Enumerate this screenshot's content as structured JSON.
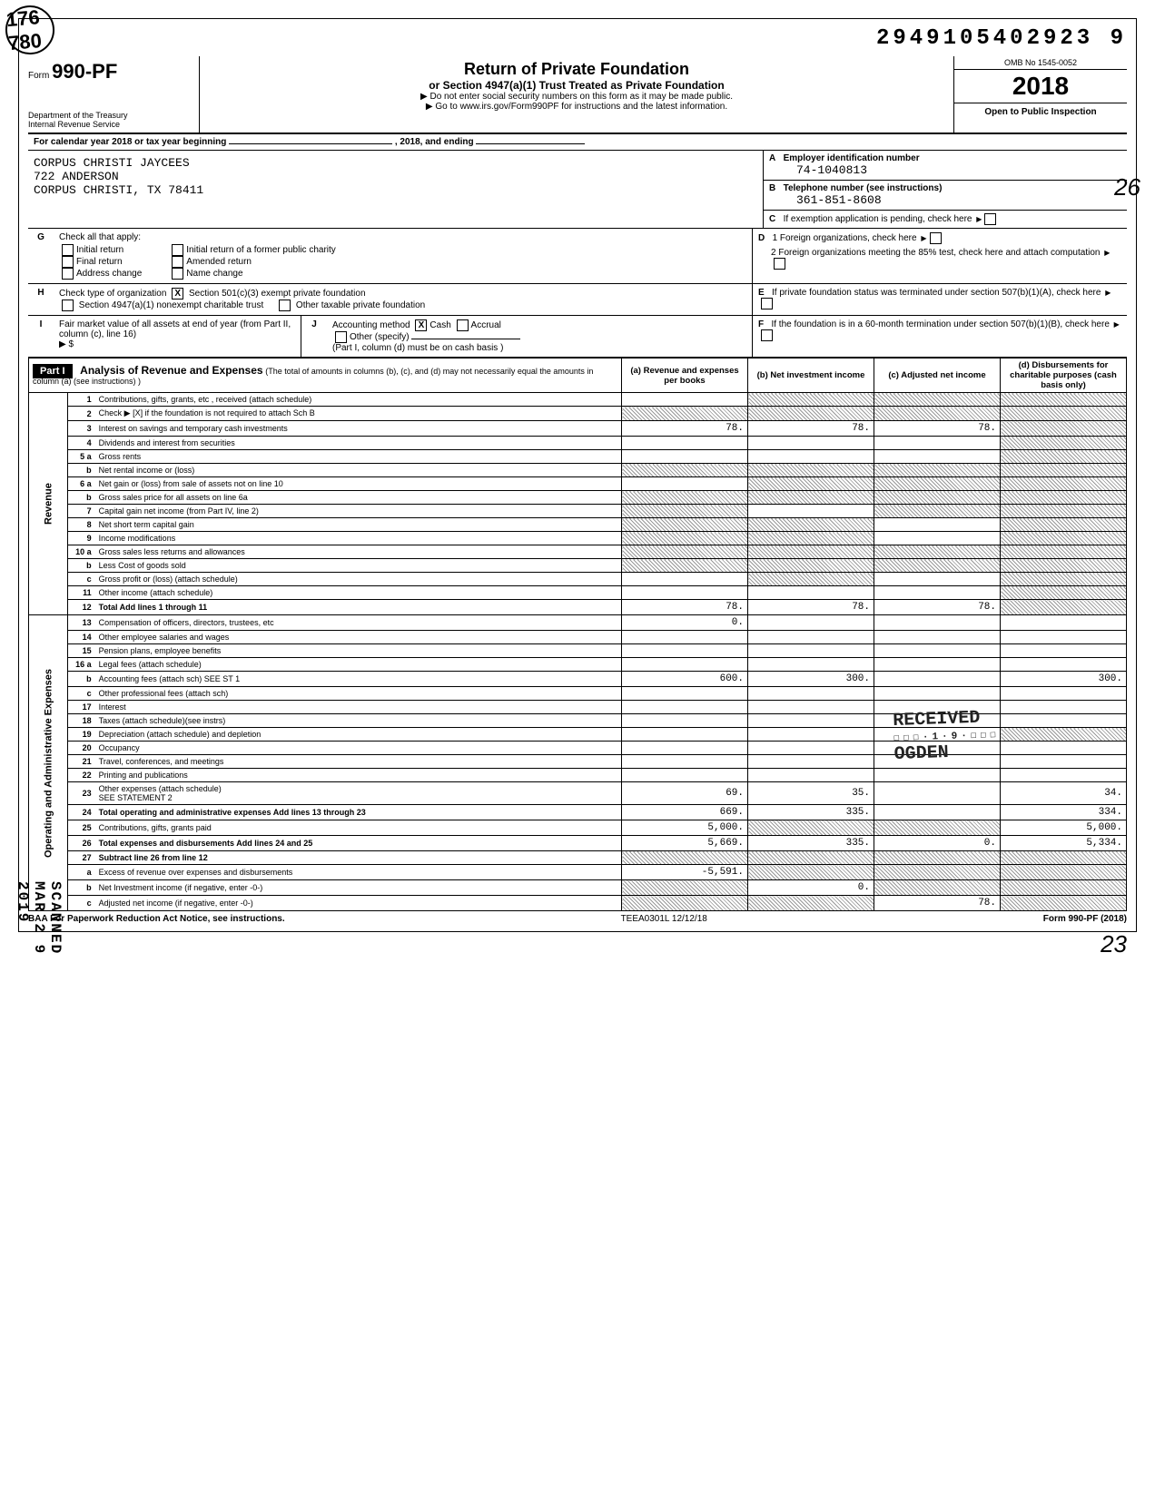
{
  "dln": "2949105402923  9",
  "omb": "OMB No 1545-0052",
  "form_number": "990-PF",
  "form_prefix": "Form",
  "year": "2018",
  "title": "Return of Private Foundation",
  "subtitle": "or Section 4947(a)(1) Trust Treated as Private Foundation",
  "note1": "▶ Do not enter social security numbers on this form as it may be made public.",
  "note2": "▶ Go to www.irs.gov/Form990PF for instructions and the latest information.",
  "dept": "Department of the Treasury\nInternal Revenue Service",
  "open": "Open to Public Inspection",
  "cal_year_line": "For calendar year 2018 or tax year beginning",
  "cal_mid": ", 2018, and ending",
  "name": "CORPUS CHRISTI JAYCEES",
  "addr1": "722 ANDERSON",
  "addr2": "CORPUS CHRISTI, TX 78411",
  "box_a_label": "Employer identification number",
  "box_a_lbl": "A",
  "ein": "74-1040813",
  "box_b_label": "Telephone number (see instructions)",
  "box_b_lbl": "B",
  "phone": "361-851-8608",
  "box_c": "If exemption application is pending, check here",
  "box_c_lbl": "C",
  "box_d1": "1  Foreign organizations, check here",
  "box_d_lbl": "D",
  "box_d2": "2  Foreign organizations meeting the 85% test, check here and attach computation",
  "box_e": "If private foundation status was terminated under section 507(b)(1)(A), check here",
  "box_e_lbl": "E",
  "box_f": "If the foundation is in a 60-month termination under section 507(b)(1)(B), check here",
  "box_f_lbl": "F",
  "g_label": "Check all that apply:",
  "g_options": [
    "Initial return",
    "Final return",
    "Address change",
    "Initial return of a former public charity",
    "Amended return",
    "Name change"
  ],
  "h_label": "Check type of organization",
  "h_options_x": "Section 501(c)(3) exempt private foundation",
  "h_option2": "Section 4947(a)(1) nonexempt charitable trust",
  "h_option3": "Other taxable private foundation",
  "i_label": "Fair market value of all assets at end of year (from Part II, column (c), line 16)",
  "i_prefix": "▶ $",
  "j_label": "Accounting method",
  "j_cash": "Cash",
  "j_accrual": "Accrual",
  "j_other": "Other (specify)",
  "j_note": "(Part I, column (d) must be on cash basis )",
  "part1_label": "Part I",
  "part1_title": "Analysis of Revenue and Expenses",
  "part1_note": "(The total of amounts in columns (b), (c), and (d) may not necessarily equal the amounts in column (a) (see instructions) )",
  "col_a": "(a) Revenue and expenses per books",
  "col_b": "(b) Net investment income",
  "col_c": "(c) Adjusted net income",
  "col_d": "(d) Disbursements for charitable purposes (cash basis only)",
  "side_revenue": "Revenue",
  "side_expenses": "Operating and Administrative Expenses",
  "scanned": "SCANNED MAR 2 9 2019",
  "received1": "RECEIVED",
  "received2": "OGDEN",
  "rows": [
    {
      "n": "1",
      "d": "Contributions, gifts, grants, etc , received (attach schedule)",
      "a": "",
      "b": "shade",
      "c": "shade",
      "dd": "shade"
    },
    {
      "n": "2",
      "d": "Check ▶  [X] if the foundation is not required to attach Sch  B",
      "a": "shade",
      "b": "shade",
      "c": "shade",
      "dd": "shade"
    },
    {
      "n": "3",
      "d": "Interest on savings and temporary cash investments",
      "a": "78.",
      "b": "78.",
      "c": "78.",
      "dd": "shade"
    },
    {
      "n": "4",
      "d": "Dividends and interest from securities",
      "a": "",
      "b": "",
      "c": "",
      "dd": "shade"
    },
    {
      "n": "5 a",
      "d": "Gross rents",
      "a": "",
      "b": "",
      "c": "",
      "dd": "shade"
    },
    {
      "n": "b",
      "d": "Net rental income or (loss)",
      "a": "shade",
      "b": "shade",
      "c": "shade",
      "dd": "shade"
    },
    {
      "n": "6 a",
      "d": "Net gain or (loss) from sale of assets not on line 10",
      "a": "",
      "b": "shade",
      "c": "shade",
      "dd": "shade"
    },
    {
      "n": "b",
      "d": "Gross sales price for all assets on line 6a",
      "a": "shade",
      "b": "shade",
      "c": "shade",
      "dd": "shade"
    },
    {
      "n": "7",
      "d": "Capital gain net income (from Part IV, line 2)",
      "a": "shade",
      "b": "",
      "c": "shade",
      "dd": "shade"
    },
    {
      "n": "8",
      "d": "Net short term capital gain",
      "a": "shade",
      "b": "shade",
      "c": "",
      "dd": "shade"
    },
    {
      "n": "9",
      "d": "Income modifications",
      "a": "shade",
      "b": "shade",
      "c": "",
      "dd": "shade"
    },
    {
      "n": "10 a",
      "d": "Gross sales less returns and allowances",
      "a": "shade",
      "b": "shade",
      "c": "shade",
      "dd": "shade"
    },
    {
      "n": "b",
      "d": "Less  Cost of goods sold",
      "a": "shade",
      "b": "shade",
      "c": "shade",
      "dd": "shade"
    },
    {
      "n": "c",
      "d": "Gross profit or (loss) (attach schedule)",
      "a": "",
      "b": "shade",
      "c": "",
      "dd": "shade"
    },
    {
      "n": "11",
      "d": "Other income (attach schedule)",
      "a": "",
      "b": "",
      "c": "",
      "dd": "shade"
    },
    {
      "n": "12",
      "d": "Total   Add lines 1 through 11",
      "a": "78.",
      "b": "78.",
      "c": "78.",
      "dd": "shade",
      "bold": true
    },
    {
      "n": "13",
      "d": "Compensation of officers, directors, trustees, etc",
      "a": "0.",
      "b": "",
      "c": "",
      "dd": ""
    },
    {
      "n": "14",
      "d": "Other employee salaries and wages",
      "a": "",
      "b": "",
      "c": "",
      "dd": ""
    },
    {
      "n": "15",
      "d": "Pension plans, employee benefits",
      "a": "",
      "b": "",
      "c": "",
      "dd": ""
    },
    {
      "n": "16 a",
      "d": "Legal fees (attach schedule)",
      "a": "",
      "b": "",
      "c": "",
      "dd": ""
    },
    {
      "n": "b",
      "d": "Accounting fees (attach sch)      SEE ST 1",
      "a": "600.",
      "b": "300.",
      "c": "",
      "dd": "300."
    },
    {
      "n": "c",
      "d": "Other professional fees (attach sch)",
      "a": "",
      "b": "",
      "c": "",
      "dd": ""
    },
    {
      "n": "17",
      "d": "Interest",
      "a": "",
      "b": "",
      "c": "",
      "dd": ""
    },
    {
      "n": "18",
      "d": "Taxes (attach schedule)(see instrs)",
      "a": "",
      "b": "",
      "c": "",
      "dd": ""
    },
    {
      "n": "19",
      "d": "Depreciation (attach schedule) and depletion",
      "a": "",
      "b": "",
      "c": "",
      "dd": "shade"
    },
    {
      "n": "20",
      "d": "Occupancy",
      "a": "",
      "b": "",
      "c": "",
      "dd": ""
    },
    {
      "n": "21",
      "d": "Travel, conferences, and meetings",
      "a": "",
      "b": "",
      "c": "",
      "dd": ""
    },
    {
      "n": "22",
      "d": "Printing and publications",
      "a": "",
      "b": "",
      "c": "",
      "dd": ""
    },
    {
      "n": "23",
      "d": "Other expenses (attach schedule)\n                SEE STATEMENT 2",
      "a": "69.",
      "b": "35.",
      "c": "",
      "dd": "34."
    },
    {
      "n": "24",
      "d": "Total operating and administrative expenses  Add lines 13 through 23",
      "a": "669.",
      "b": "335.",
      "c": "",
      "dd": "334.",
      "bold": true
    },
    {
      "n": "25",
      "d": "Contributions, gifts, grants paid",
      "a": "5,000.",
      "b": "shade",
      "c": "shade",
      "dd": "5,000."
    },
    {
      "n": "26",
      "d": "Total expenses and disbursements Add lines 24 and 25",
      "a": "5,669.",
      "b": "335.",
      "c": "0.",
      "dd": "5,334.",
      "bold": true
    },
    {
      "n": "27",
      "d": "Subtract line 26 from line 12",
      "a": "shade",
      "b": "shade",
      "c": "shade",
      "dd": "shade",
      "bold": true
    },
    {
      "n": "a",
      "d": "Excess of revenue over expenses and disbursements",
      "a": "-5,591.",
      "b": "shade",
      "c": "shade",
      "dd": "shade"
    },
    {
      "n": "b",
      "d": "Net Investment income (if negative, enter -0-)",
      "a": "shade",
      "b": "0.",
      "c": "shade",
      "dd": "shade"
    },
    {
      "n": "c",
      "d": "Adjusted net income (if negative, enter -0-)",
      "a": "shade",
      "b": "shade",
      "c": "78.",
      "dd": "shade"
    }
  ],
  "baa": "BAA  For Paperwork Reduction Act Notice, see instructions.",
  "teea": "TEEA0301L  12/12/18",
  "form_footer": "Form 990-PF (2018)",
  "doodle_left": "176\n780",
  "hand_23": "23",
  "hand_26": "26"
}
